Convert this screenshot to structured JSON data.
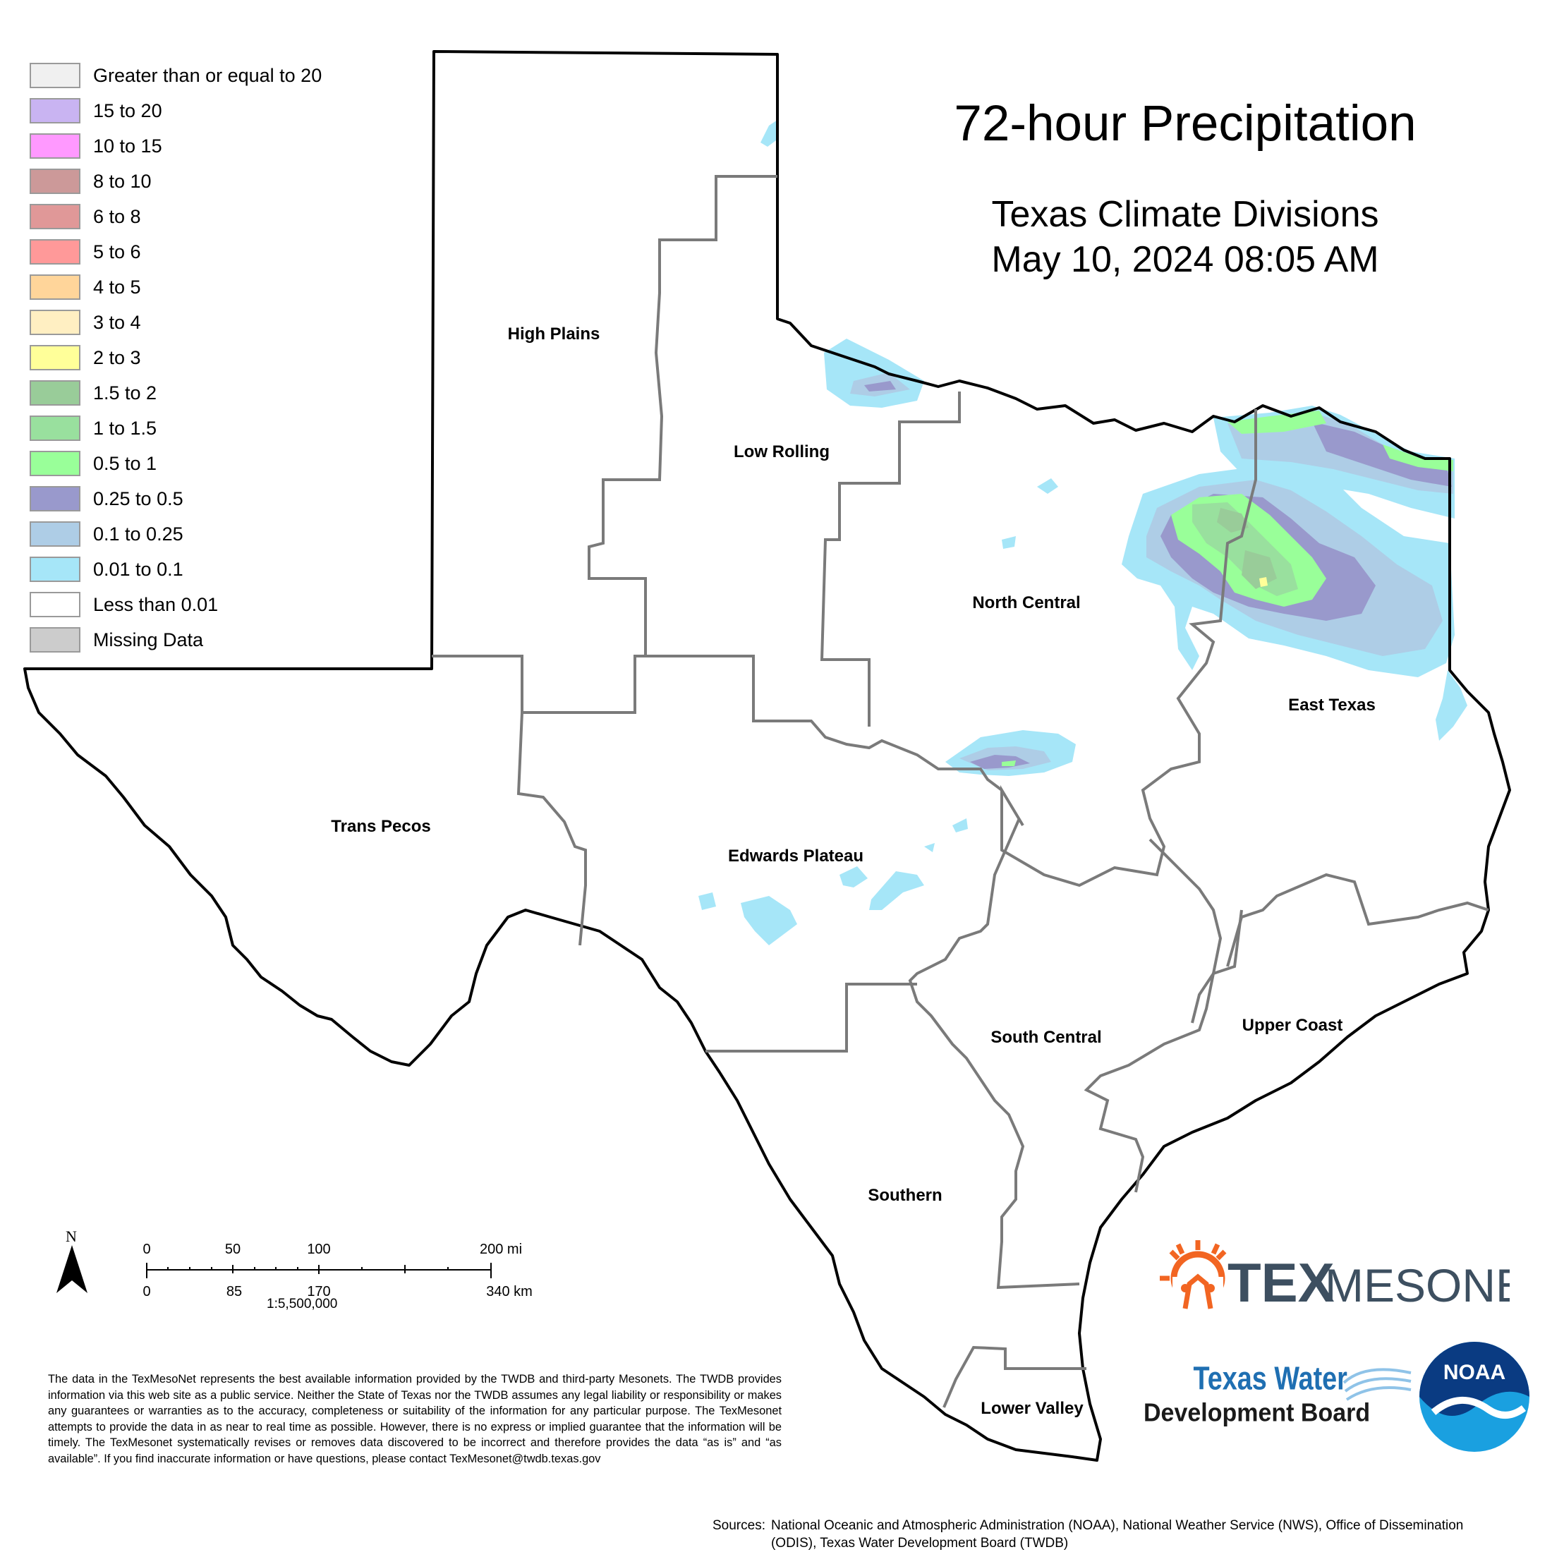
{
  "title": "72-hour Precipitation",
  "subtitle_line1": "Texas Climate Divisions",
  "subtitle_line2": "May 10, 2024 08:05 AM",
  "legend": [
    {
      "label": "Greater than or equal to 20",
      "color": "#f0f0f0"
    },
    {
      "label": "15 to 20",
      "color": "#c9b4f2"
    },
    {
      "label": "10 to 15",
      "color": "#ff99ff"
    },
    {
      "label": "8 to 10",
      "color": "#cc9999"
    },
    {
      "label": "6 to 8",
      "color": "#e09898"
    },
    {
      "label": "5 to 6",
      "color": "#ff9999"
    },
    {
      "label": "4 to 5",
      "color": "#ffd59a"
    },
    {
      "label": "3 to 4",
      "color": "#ffefc2"
    },
    {
      "label": "2 to 3",
      "color": "#ffff99"
    },
    {
      "label": "1.5 to 2",
      "color": "#99cc99"
    },
    {
      "label": "1 to 1.5",
      "color": "#99e09e"
    },
    {
      "label": "0.5 to 1",
      "color": "#99ff99"
    },
    {
      "label": "0.25 to 0.5",
      "color": "#9999cc"
    },
    {
      "label": "0.1 to 0.25",
      "color": "#aecde6"
    },
    {
      "label": "0.01 to 0.1",
      "color": "#a6e6f8"
    },
    {
      "label": "Less than 0.01",
      "color": "#ffffff"
    },
    {
      "label": "Missing Data",
      "color": "#cccccc"
    }
  ],
  "divisions": {
    "high_plains": "High Plains",
    "low_rolling": "Low Rolling",
    "north_central": "North Central",
    "east_texas": "East Texas",
    "trans_pecos": "Trans Pecos",
    "edwards_plateau": "Edwards Plateau",
    "south_central": "South Central",
    "upper_coast": "Upper Coast",
    "southern": "Southern",
    "lower_valley": "Lower Valley"
  },
  "north_arrow": "N",
  "scale": {
    "mi": [
      "0",
      "50",
      "100",
      "200 mi"
    ],
    "km": [
      "0",
      "85",
      "170",
      "340 km"
    ],
    "ratio": "1:5,500,000"
  },
  "disclaimer": "The data in the TexMesoNet represents the best available information provided by the TWDB and third-party Mesonets. The TWDB provides information via this web site as a public service. Neither the State of Texas nor the TWDB assumes any legal liability or responsibility or makes any guarantees or warranties as to the accuracy, completeness or suitability of the information for any particular purpose. The TexMesonet attempts to provide the data in as near to real time as possible. However, there is no express or implied guarantee that the information will be timely. The TexMesonet systematically revises or removes data discovered to be incorrect and therefore provides the data “as is” and “as available”. If you find inaccurate information or have questions, please contact TexMesonet@twdb.texas.gov",
  "sources_label": "Sources:",
  "sources_text": "National Oceanic and Atmospheric Administration (NOAA), National Weather Service (NWS), Office of Dissemination (ODIS), Texas Water Development Board (TWDB)",
  "logos": {
    "texmesonet_tex": "TEX",
    "texmesonet_mesonet": "MESONET",
    "twdb_line1": "Texas Water",
    "twdb_line2": "Development Board",
    "noaa": "NOAA"
  }
}
